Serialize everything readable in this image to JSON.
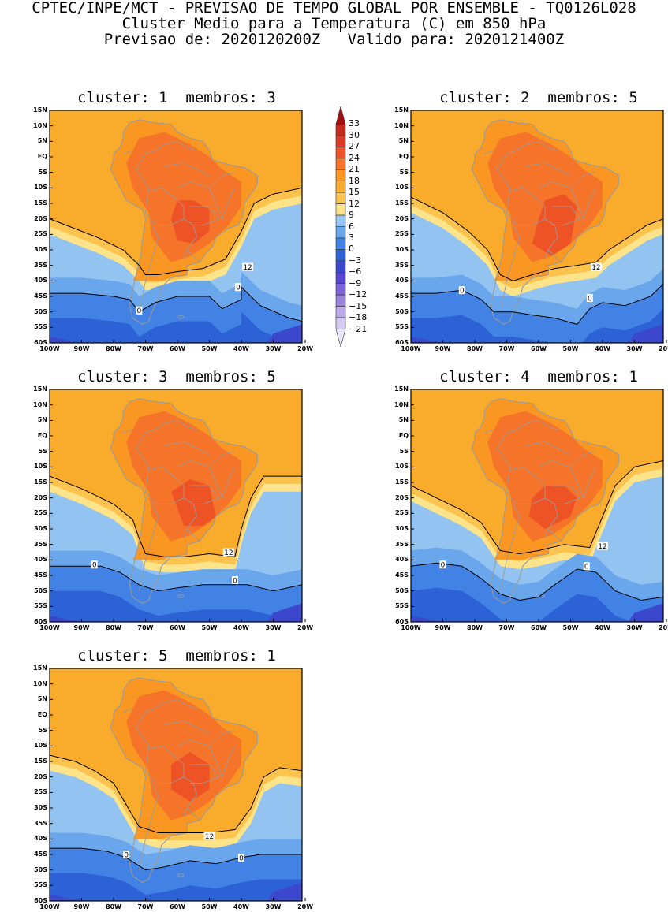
{
  "header": {
    "line1": "CPTEC/INPE/MCT - PREVISAO DE TEMPO GLOBAL POR ENSEMBLE - TQ0126L028",
    "line2": "Cluster Medio para a Temperatura (C) em 850 hPa",
    "line3": "Previsao de: 2020120200Z   Valido para: 2020121400Z"
  },
  "panels": [
    {
      "title": "cluster: 1  membros: 3",
      "contour_labels": [
        "12",
        "0",
        "0"
      ]
    },
    {
      "title": "cluster: 2  membros: 5",
      "contour_labels": [
        "12",
        "0",
        "0"
      ]
    },
    {
      "title": "cluster: 3  membros: 5",
      "contour_labels": [
        "12",
        "0",
        "0"
      ]
    },
    {
      "title": "cluster: 4  membros: 1",
      "contour_labels": [
        "12",
        "0",
        "0"
      ]
    },
    {
      "title": "cluster: 5  membros: 1",
      "contour_labels": [
        "12",
        "0",
        "0"
      ]
    }
  ],
  "lat_ticks": [
    "15N",
    "10N",
    "5N",
    "EQ",
    "5S",
    "10S",
    "15S",
    "20S",
    "25S",
    "30S",
    "35S",
    "40S",
    "45S",
    "50S",
    "55S",
    "60S"
  ],
  "lon_ticks": [
    "100W",
    "90W",
    "80W",
    "70W",
    "60W",
    "50W",
    "40W",
    "30W",
    "20W"
  ],
  "legend": {
    "levels": [
      "33",
      "30",
      "27",
      "24",
      "21",
      "18",
      "15",
      "12",
      "9",
      "6",
      "3",
      "0",
      "-3",
      "-6",
      "-9",
      "-12",
      "-15",
      "-18",
      "-21"
    ],
    "colors": [
      "#a40f0f",
      "#c52a1e",
      "#dc3a24",
      "#ee5326",
      "#f6742a",
      "#f99622",
      "#f9ac2c",
      "#fcc34e",
      "#fde38a",
      "#93c4f1",
      "#6aa6ec",
      "#4282e4",
      "#2d62d7",
      "#3b47cc",
      "#5745cd",
      "#7b62d6",
      "#9a84e0",
      "#b9a9ea",
      "#d6cbf3",
      "#ece6fa"
    ]
  }
}
